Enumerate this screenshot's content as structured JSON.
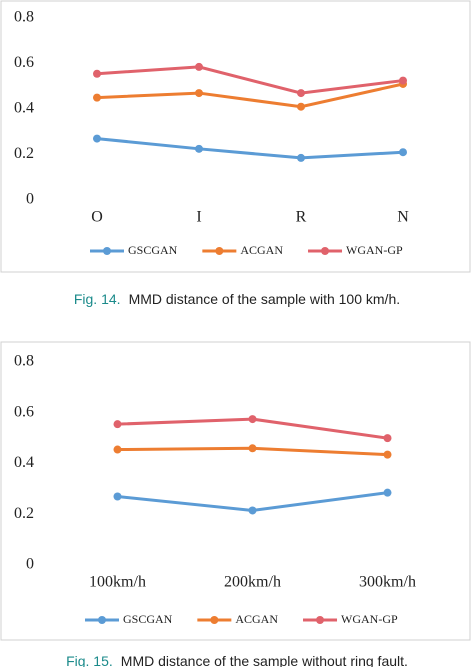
{
  "chart_data": [
    {
      "type": "line",
      "categories": [
        "O",
        "I",
        "R",
        "N"
      ],
      "series": [
        {
          "name": "GSCGAN",
          "color": "#5b9bd5",
          "values": [
            0.27,
            0.225,
            0.185,
            0.21
          ]
        },
        {
          "name": "ACGAN",
          "color": "#ed7d31",
          "values": [
            0.45,
            0.47,
            0.41,
            0.51
          ]
        },
        {
          "name": "WGAN-GP",
          "color": "#e0626b",
          "values": [
            0.555,
            0.585,
            0.47,
            0.525
          ]
        }
      ],
      "ylim": [
        0,
        0.8
      ],
      "yticks": [
        0,
        0.2,
        0.4,
        0.6,
        0.8
      ],
      "legend": "bottom",
      "caption_label": "Fig. 14.",
      "caption": "MMD distance of the sample with 100 km/h."
    },
    {
      "type": "line",
      "categories": [
        "100km/h",
        "200km/h",
        "300km/h"
      ],
      "series": [
        {
          "name": "GSCGAN",
          "color": "#5b9bd5",
          "values": [
            0.27,
            0.215,
            0.285
          ]
        },
        {
          "name": "ACGAN",
          "color": "#ed7d31",
          "values": [
            0.455,
            0.46,
            0.435
          ]
        },
        {
          "name": "WGAN-GP",
          "color": "#e0626b",
          "values": [
            0.555,
            0.575,
            0.5
          ]
        }
      ],
      "ylim": [
        0,
        0.8
      ],
      "yticks": [
        0,
        0.2,
        0.4,
        0.6,
        0.8
      ],
      "legend": "bottom",
      "caption_label": "Fig. 15.",
      "caption": "MMD distance of the sample without ring fault."
    }
  ]
}
